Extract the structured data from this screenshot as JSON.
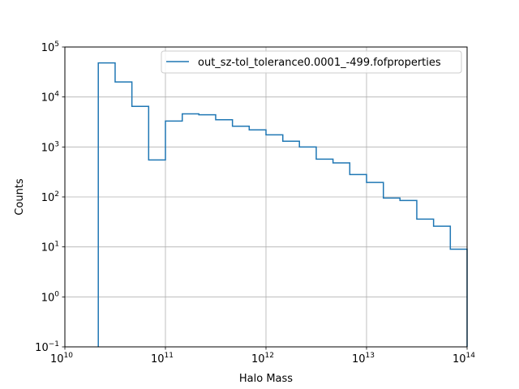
{
  "chart_data": {
    "type": "histogram",
    "title": "",
    "xlabel": "Halo Mass",
    "ylabel": "Counts",
    "x_scale": "log",
    "y_scale": "log",
    "xlim": [
      10000000000.0,
      100000000000000.0
    ],
    "ylim": [
      0.1,
      100000
    ],
    "grid": true,
    "legend_position": "upper right",
    "x_ticks": [
      {
        "base": "10",
        "exp": "10",
        "value": 10000000000.0
      },
      {
        "base": "10",
        "exp": "11",
        "value": 100000000000.0
      },
      {
        "base": "10",
        "exp": "12",
        "value": 1000000000000.0
      },
      {
        "base": "10",
        "exp": "13",
        "value": 10000000000000.0
      },
      {
        "base": "10",
        "exp": "14",
        "value": 100000000000000.0
      }
    ],
    "y_ticks": [
      {
        "base": "10",
        "exp": "−1",
        "value": 0.1
      },
      {
        "base": "10",
        "exp": "0",
        "value": 1
      },
      {
        "base": "10",
        "exp": "1",
        "value": 10
      },
      {
        "base": "10",
        "exp": "2",
        "value": 100
      },
      {
        "base": "10",
        "exp": "3",
        "value": 1000
      },
      {
        "base": "10",
        "exp": "4",
        "value": 10000
      },
      {
        "base": "10",
        "exp": "5",
        "value": 100000
      }
    ],
    "series": [
      {
        "name": "out_sz-tol_tolerance0.0001_-499.fofproperties",
        "color": "#1f77b4",
        "bin_edges": [
          21500000000.0,
          31600000000.0,
          46400000000.0,
          68100000000.0,
          100000000000.0,
          147000000000.0,
          215000000000.0,
          316000000000.0,
          464000000000.0,
          681000000000.0,
          1000000000000.0,
          1470000000000.0,
          2150000000000.0,
          3160000000000.0,
          4640000000000.0,
          6810000000000.0,
          10000000000000.0,
          14700000000000.0,
          21500000000000.0,
          31600000000000.0,
          46400000000000.0,
          68100000000000.0,
          100000000000000.0
        ],
        "counts": [
          48000,
          20000,
          6500,
          550,
          3300,
          4600,
          4400,
          3500,
          2600,
          2200,
          1750,
          1300,
          1000,
          570,
          480,
          280,
          195,
          95,
          85,
          36,
          26,
          9
        ]
      }
    ]
  }
}
